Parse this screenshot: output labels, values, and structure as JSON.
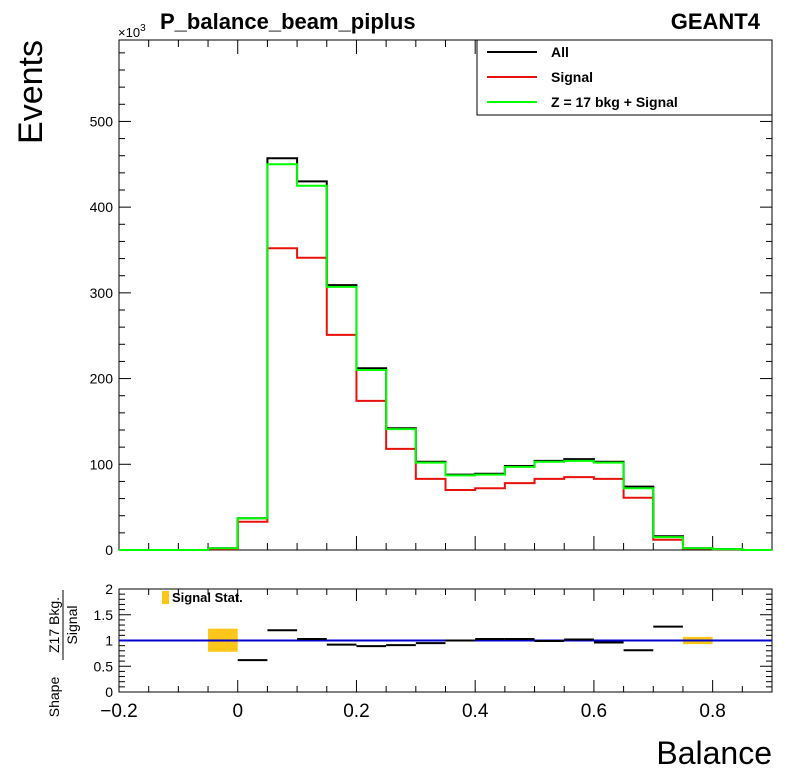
{
  "chart_data": [
    {
      "type": "line",
      "title": "P_balance_beam_piplus",
      "label_right": "GEANT4",
      "xlabel": "Balance",
      "ylabel": "Events",
      "y_multiplier": "×10",
      "y_multiplier_exp": "3",
      "xlim": [
        -0.2,
        0.9
      ],
      "ylim": [
        0,
        595
      ],
      "yticks": [
        "0",
        "100",
        "200",
        "300",
        "400",
        "500"
      ],
      "bin_edges": [
        -0.2,
        -0.15,
        -0.1,
        -0.05,
        0.0,
        0.05,
        0.1,
        0.15,
        0.2,
        0.25,
        0.3,
        0.35,
        0.4,
        0.45,
        0.5,
        0.55,
        0.6,
        0.65,
        0.7,
        0.75,
        0.8,
        0.85,
        0.9
      ],
      "legend": {
        "placement": "top-right"
      },
      "series": [
        {
          "name": "All",
          "color": "#000000",
          "values": [
            0,
            0,
            0,
            2,
            37,
            457,
            430,
            309,
            212,
            142,
            103,
            88,
            89,
            98,
            104,
            106,
            103,
            74,
            16,
            2,
            1,
            0
          ]
        },
        {
          "name": "Signal",
          "color": "#e8120b",
          "values": [
            0,
            0,
            0,
            1,
            33,
            352,
            341,
            251,
            174,
            118,
            83,
            70,
            72,
            78,
            83,
            85,
            83,
            61,
            12,
            1.5,
            1,
            0
          ]
        },
        {
          "name": "Z = 17 bkg + Signal",
          "color": "#00ff00",
          "values": [
            0,
            0,
            0,
            2,
            37,
            450,
            425,
            307,
            210,
            141,
            102,
            87,
            88,
            97,
            103,
            104,
            102,
            72,
            15,
            2,
            1,
            0
          ]
        }
      ]
    },
    {
      "type": "line",
      "ylabel_top": "Z17 Bkg.",
      "ylabel_bottom": "Signal",
      "ylabel_prefix": "Shape",
      "xticks": [
        "−0.2",
        "0",
        "0.2",
        "0.4",
        "0.6",
        "0.8"
      ],
      "yticks": [
        "0",
        "0.5",
        "1",
        "1.5",
        "2"
      ],
      "xlim": [
        -0.2,
        0.9
      ],
      "ylim": [
        0,
        2
      ],
      "reference_line": {
        "y": 1,
        "color": "#0000cc"
      },
      "legend": {
        "label": "Signal Stat.",
        "color": "#ffc61a",
        "placement": "top-left"
      },
      "ratio_points": [
        {
          "x0": 0.0,
          "x1": 0.05,
          "y": 0.62
        },
        {
          "x0": 0.05,
          "x1": 0.1,
          "y": 1.2
        },
        {
          "x0": 0.1,
          "x1": 0.15,
          "y": 1.03
        },
        {
          "x0": 0.15,
          "x1": 0.2,
          "y": 0.92
        },
        {
          "x0": 0.2,
          "x1": 0.25,
          "y": 0.89
        },
        {
          "x0": 0.25,
          "x1": 0.3,
          "y": 0.91
        },
        {
          "x0": 0.3,
          "x1": 0.35,
          "y": 0.95
        },
        {
          "x0": 0.35,
          "x1": 0.4,
          "y": 1.0
        },
        {
          "x0": 0.4,
          "x1": 0.45,
          "y": 1.03
        },
        {
          "x0": 0.45,
          "x1": 0.5,
          "y": 1.03
        },
        {
          "x0": 0.5,
          "x1": 0.55,
          "y": 0.99
        },
        {
          "x0": 0.55,
          "x1": 0.6,
          "y": 1.02
        },
        {
          "x0": 0.6,
          "x1": 0.65,
          "y": 0.96
        },
        {
          "x0": 0.65,
          "x1": 0.7,
          "y": 0.81
        },
        {
          "x0": 0.7,
          "x1": 0.75,
          "y": 1.27
        }
      ],
      "stat_bands": [
        {
          "x0": -0.05,
          "x1": 0.0,
          "ylo": 0.78,
          "yhi": 1.23
        },
        {
          "x0": 0.75,
          "x1": 0.8,
          "ylo": 0.93,
          "yhi": 1.07
        }
      ]
    }
  ]
}
